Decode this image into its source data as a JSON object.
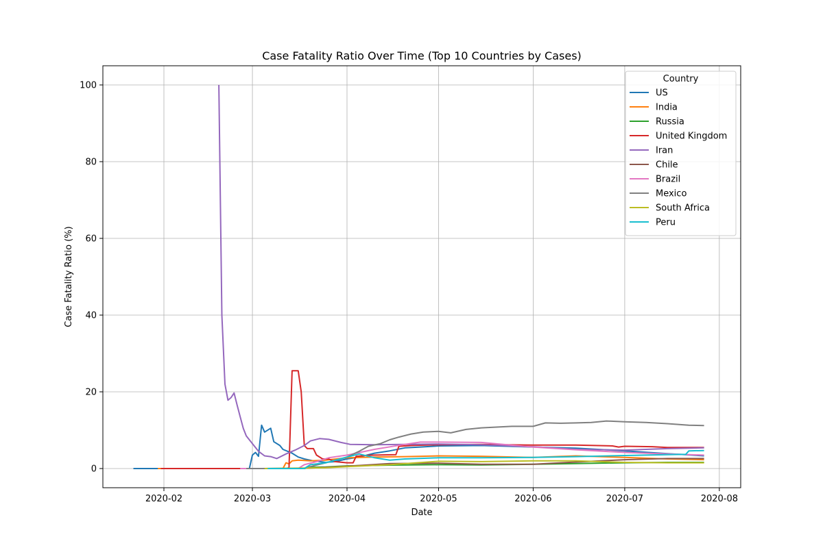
{
  "chart_data": {
    "type": "line",
    "title": "Case Fatality Ratio Over Time (Top 10 Countries by Cases)",
    "xlabel": "Date",
    "ylabel": "Case Fatality Ratio (%)",
    "x_axis": {
      "kind": "date",
      "range": [
        "2020-01-12",
        "2020-08-08"
      ],
      "ticks": [
        {
          "date": "2020-02-01",
          "label": "2020-02"
        },
        {
          "date": "2020-03-01",
          "label": "2020-03"
        },
        {
          "date": "2020-04-01",
          "label": "2020-04"
        },
        {
          "date": "2020-05-01",
          "label": "2020-05"
        },
        {
          "date": "2020-06-01",
          "label": "2020-06"
        },
        {
          "date": "2020-07-01",
          "label": "2020-07"
        },
        {
          "date": "2020-08-01",
          "label": "2020-08"
        }
      ]
    },
    "y_axis": {
      "range": [
        -5,
        105
      ],
      "ticks": [
        0,
        20,
        40,
        60,
        80,
        100
      ]
    },
    "grid": true,
    "legend": {
      "title": "Country",
      "placement": "top-right"
    },
    "series": [
      {
        "name": "US",
        "color": "#1f77b4",
        "points": [
          [
            "2020-01-22",
            0
          ],
          [
            "2020-02-29",
            0
          ],
          [
            "2020-03-01",
            3.5
          ],
          [
            "2020-03-02",
            4.2
          ],
          [
            "2020-03-03",
            3.2
          ],
          [
            "2020-03-04",
            11.3
          ],
          [
            "2020-03-05",
            9.5
          ],
          [
            "2020-03-07",
            10.5
          ],
          [
            "2020-03-08",
            7.0
          ],
          [
            "2020-03-10",
            6.0
          ],
          [
            "2020-03-11",
            5.0
          ],
          [
            "2020-03-14",
            4.0
          ],
          [
            "2020-03-16",
            3.0
          ],
          [
            "2020-03-18",
            2.5
          ],
          [
            "2020-03-21",
            2.0
          ],
          [
            "2020-03-25",
            1.6
          ],
          [
            "2020-03-28",
            1.8
          ],
          [
            "2020-04-01",
            2.5
          ],
          [
            "2020-04-05",
            3.0
          ],
          [
            "2020-04-10",
            4.0
          ],
          [
            "2020-04-15",
            4.6
          ],
          [
            "2020-04-20",
            5.4
          ],
          [
            "2020-04-25",
            5.6
          ],
          [
            "2020-05-01",
            5.9
          ],
          [
            "2020-05-15",
            6.0
          ],
          [
            "2020-06-01",
            5.6
          ],
          [
            "2020-06-15",
            5.3
          ],
          [
            "2020-07-01",
            4.6
          ],
          [
            "2020-07-15",
            3.9
          ],
          [
            "2020-07-27",
            3.3
          ]
        ]
      },
      {
        "name": "India",
        "color": "#ff7f0e",
        "points": [
          [
            "2020-01-30",
            0
          ],
          [
            "2020-03-11",
            0
          ],
          [
            "2020-03-12",
            1.5
          ],
          [
            "2020-03-13",
            1.2
          ],
          [
            "2020-03-14",
            2.0
          ],
          [
            "2020-03-16",
            2.2
          ],
          [
            "2020-03-20",
            2.0
          ],
          [
            "2020-03-25",
            2.2
          ],
          [
            "2020-04-01",
            2.8
          ],
          [
            "2020-04-10",
            3.0
          ],
          [
            "2020-04-20",
            3.1
          ],
          [
            "2020-05-01",
            3.3
          ],
          [
            "2020-05-15",
            3.2
          ],
          [
            "2020-06-01",
            2.9
          ],
          [
            "2020-06-15",
            3.3
          ],
          [
            "2020-07-01",
            2.9
          ],
          [
            "2020-07-15",
            2.5
          ],
          [
            "2020-07-27",
            2.3
          ]
        ]
      },
      {
        "name": "Russia",
        "color": "#2ca02c",
        "points": [
          [
            "2020-02-01",
            0
          ],
          [
            "2020-03-18",
            0
          ],
          [
            "2020-03-20",
            0.3
          ],
          [
            "2020-03-25",
            0.4
          ],
          [
            "2020-04-01",
            0.7
          ],
          [
            "2020-04-15",
            0.9
          ],
          [
            "2020-05-01",
            1.0
          ],
          [
            "2020-05-15",
            0.95
          ],
          [
            "2020-06-01",
            1.1
          ],
          [
            "2020-06-15",
            1.3
          ],
          [
            "2020-07-01",
            1.5
          ],
          [
            "2020-07-15",
            1.6
          ],
          [
            "2020-07-27",
            1.6
          ]
        ]
      },
      {
        "name": "United Kingdom",
        "color": "#d62728",
        "points": [
          [
            "2020-01-31",
            0
          ],
          [
            "2020-03-12",
            0
          ],
          [
            "2020-03-13",
            0.2
          ],
          [
            "2020-03-14",
            25.5
          ],
          [
            "2020-03-16",
            25.5
          ],
          [
            "2020-03-17",
            20.0
          ],
          [
            "2020-03-18",
            6.0
          ],
          [
            "2020-03-19",
            5.2
          ],
          [
            "2020-03-21",
            5.2
          ],
          [
            "2020-03-22",
            3.5
          ],
          [
            "2020-03-24",
            2.5
          ],
          [
            "2020-03-26",
            2.5
          ],
          [
            "2020-03-28",
            1.8
          ],
          [
            "2020-04-01",
            1.5
          ],
          [
            "2020-04-03",
            1.5
          ],
          [
            "2020-04-04",
            3.2
          ],
          [
            "2020-04-07",
            3.4
          ],
          [
            "2020-04-10",
            3.5
          ],
          [
            "2020-04-17",
            3.6
          ],
          [
            "2020-04-18",
            5.8
          ],
          [
            "2020-04-22",
            6.0
          ],
          [
            "2020-05-01",
            6.2
          ],
          [
            "2020-05-15",
            6.3
          ],
          [
            "2020-06-01",
            6.1
          ],
          [
            "2020-06-15",
            6.1
          ],
          [
            "2020-06-27",
            5.9
          ],
          [
            "2020-06-29",
            5.6
          ],
          [
            "2020-07-01",
            5.8
          ],
          [
            "2020-07-10",
            5.7
          ],
          [
            "2020-07-15",
            5.5
          ],
          [
            "2020-07-27",
            5.5
          ]
        ]
      },
      {
        "name": "Iran",
        "color": "#9467bd",
        "points": [
          [
            "2020-02-19",
            100
          ],
          [
            "2020-02-20",
            40
          ],
          [
            "2020-02-21",
            22
          ],
          [
            "2020-02-22",
            17.8
          ],
          [
            "2020-02-23",
            18.5
          ],
          [
            "2020-02-24",
            19.7
          ],
          [
            "2020-02-25",
            16.5
          ],
          [
            "2020-02-26",
            13.5
          ],
          [
            "2020-02-27",
            10.5
          ],
          [
            "2020-02-28",
            8.5
          ],
          [
            "2020-03-01",
            6.5
          ],
          [
            "2020-03-03",
            4.5
          ],
          [
            "2020-03-05",
            3.3
          ],
          [
            "2020-03-07",
            3.1
          ],
          [
            "2020-03-09",
            2.6
          ],
          [
            "2020-03-12",
            3.8
          ],
          [
            "2020-03-15",
            4.8
          ],
          [
            "2020-03-18",
            6.0
          ],
          [
            "2020-03-20",
            7.2
          ],
          [
            "2020-03-23",
            7.8
          ],
          [
            "2020-03-26",
            7.6
          ],
          [
            "2020-03-30",
            6.8
          ],
          [
            "2020-04-02",
            6.3
          ],
          [
            "2020-04-10",
            6.2
          ],
          [
            "2020-04-20",
            6.3
          ],
          [
            "2020-05-01",
            6.4
          ],
          [
            "2020-05-15",
            6.2
          ],
          [
            "2020-06-01",
            5.7
          ],
          [
            "2020-06-15",
            5.0
          ],
          [
            "2020-07-01",
            4.8
          ],
          [
            "2020-07-15",
            5.2
          ],
          [
            "2020-07-27",
            5.4
          ]
        ]
      },
      {
        "name": "Chile",
        "color": "#8c564b",
        "points": [
          [
            "2020-03-03",
            0
          ],
          [
            "2020-03-20",
            0.1
          ],
          [
            "2020-04-01",
            0.6
          ],
          [
            "2020-04-15",
            1.3
          ],
          [
            "2020-05-01",
            1.4
          ],
          [
            "2020-05-15",
            1.1
          ],
          [
            "2020-06-01",
            1.1
          ],
          [
            "2020-06-15",
            1.7
          ],
          [
            "2020-07-01",
            2.3
          ],
          [
            "2020-07-15",
            2.6
          ],
          [
            "2020-07-27",
            2.6
          ]
        ]
      },
      {
        "name": "Brazil",
        "color": "#e377c2",
        "points": [
          [
            "2020-02-26",
            0
          ],
          [
            "2020-03-16",
            0
          ],
          [
            "2020-03-18",
            1.0
          ],
          [
            "2020-03-22",
            1.8
          ],
          [
            "2020-03-26",
            2.8
          ],
          [
            "2020-04-01",
            3.5
          ],
          [
            "2020-04-10",
            5.0
          ],
          [
            "2020-04-20",
            6.3
          ],
          [
            "2020-04-25",
            6.9
          ],
          [
            "2020-05-01",
            6.9
          ],
          [
            "2020-05-15",
            6.8
          ],
          [
            "2020-06-01",
            5.6
          ],
          [
            "2020-06-15",
            4.9
          ],
          [
            "2020-07-01",
            4.2
          ],
          [
            "2020-07-15",
            3.8
          ],
          [
            "2020-07-27",
            3.5
          ]
        ]
      },
      {
        "name": "Mexico",
        "color": "#7f7f7f",
        "points": [
          [
            "2020-02-28",
            0
          ],
          [
            "2020-03-18",
            0
          ],
          [
            "2020-03-20",
            0.5
          ],
          [
            "2020-03-25",
            1.5
          ],
          [
            "2020-04-01",
            3.0
          ],
          [
            "2020-04-05",
            4.5
          ],
          [
            "2020-04-08",
            5.8
          ],
          [
            "2020-04-12",
            6.5
          ],
          [
            "2020-04-15",
            7.5
          ],
          [
            "2020-04-18",
            8.2
          ],
          [
            "2020-04-22",
            9.0
          ],
          [
            "2020-04-26",
            9.5
          ],
          [
            "2020-05-01",
            9.7
          ],
          [
            "2020-05-05",
            9.3
          ],
          [
            "2020-05-10",
            10.2
          ],
          [
            "2020-05-15",
            10.6
          ],
          [
            "2020-05-20",
            10.8
          ],
          [
            "2020-05-25",
            11.0
          ],
          [
            "2020-06-01",
            11.0
          ],
          [
            "2020-06-05",
            11.9
          ],
          [
            "2020-06-10",
            11.8
          ],
          [
            "2020-06-15",
            11.9
          ],
          [
            "2020-06-20",
            12.0
          ],
          [
            "2020-06-25",
            12.4
          ],
          [
            "2020-07-01",
            12.2
          ],
          [
            "2020-07-08",
            12.0
          ],
          [
            "2020-07-15",
            11.7
          ],
          [
            "2020-07-22",
            11.3
          ],
          [
            "2020-07-27",
            11.2
          ]
        ]
      },
      {
        "name": "South Africa",
        "color": "#bcbd22",
        "points": [
          [
            "2020-03-05",
            0
          ],
          [
            "2020-03-25",
            0.2
          ],
          [
            "2020-04-01",
            0.5
          ],
          [
            "2020-04-15",
            1.0
          ],
          [
            "2020-05-01",
            1.9
          ],
          [
            "2020-05-15",
            1.8
          ],
          [
            "2020-06-01",
            2.0
          ],
          [
            "2020-06-15",
            2.0
          ],
          [
            "2020-07-01",
            1.6
          ],
          [
            "2020-07-15",
            1.5
          ],
          [
            "2020-07-27",
            1.5
          ]
        ]
      },
      {
        "name": "Peru",
        "color": "#17becf",
        "points": [
          [
            "2020-03-06",
            0
          ],
          [
            "2020-03-18",
            0
          ],
          [
            "2020-03-20",
            1.0
          ],
          [
            "2020-03-25",
            1.5
          ],
          [
            "2020-04-01",
            3.0
          ],
          [
            "2020-04-05",
            3.8
          ],
          [
            "2020-04-10",
            2.8
          ],
          [
            "2020-04-15",
            2.2
          ],
          [
            "2020-04-20",
            2.5
          ],
          [
            "2020-05-01",
            2.8
          ],
          [
            "2020-05-15",
            2.8
          ],
          [
            "2020-06-01",
            2.9
          ],
          [
            "2020-06-15",
            3.1
          ],
          [
            "2020-07-01",
            3.4
          ],
          [
            "2020-07-15",
            3.6
          ],
          [
            "2020-07-21",
            3.7
          ],
          [
            "2020-07-22",
            4.6
          ],
          [
            "2020-07-27",
            4.7
          ]
        ]
      }
    ]
  }
}
